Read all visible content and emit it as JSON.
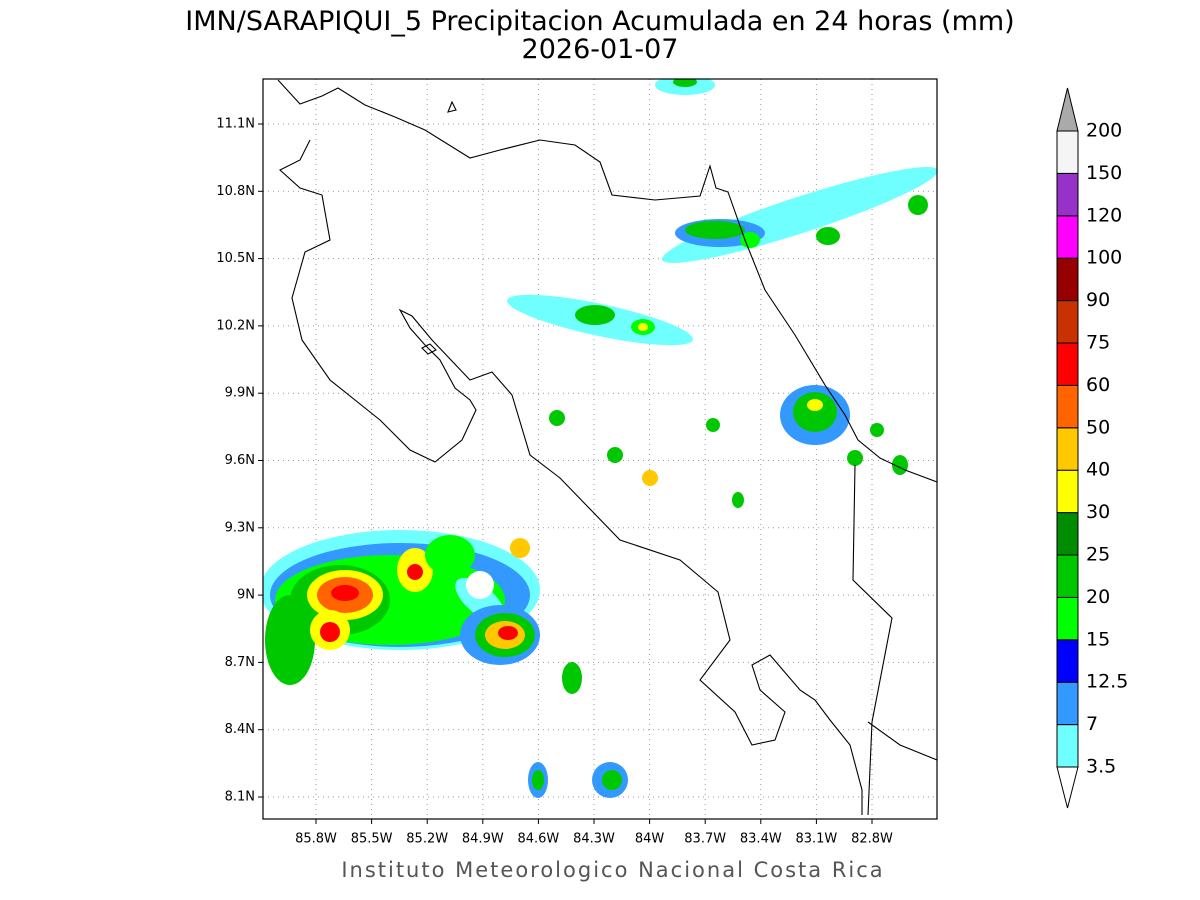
{
  "map": {
    "title": "IMN/SARAPIQUI_5 Precipitacion Acumulada en 24 horas (mm)",
    "subtitle": "2026-01-07",
    "footer": "Instituto Meteorologico Nacional Costa Rica",
    "lon_labels": [
      "85.8W",
      "85.5W",
      "85.2W",
      "84.9W",
      "84.6W",
      "84.3W",
      "84W",
      "83.7W",
      "83.4W",
      "83.1W",
      "82.8W"
    ],
    "lat_labels": [
      "11.1N",
      "10.8N",
      "10.5N",
      "10.2N",
      "9.9N",
      "9.6N",
      "9.3N",
      "9N",
      "8.7N",
      "8.4N",
      "8.1N"
    ],
    "grid": true,
    "colorbar": {
      "levels": [
        3.5,
        7,
        12.5,
        15,
        20,
        25,
        30,
        40,
        50,
        60,
        75,
        90,
        100,
        120,
        150,
        200
      ],
      "colors": [
        "#70ffff",
        "#3399ff",
        "#0000ff",
        "#00ff00",
        "#00c800",
        "#008c00",
        "#ffff00",
        "#ffc800",
        "#ff6400",
        "#ff0000",
        "#c83200",
        "#960000",
        "#ff00ff",
        "#9632c8",
        "#f5f5f5"
      ],
      "under_color": "#ffffff",
      "over_color": "#aaaaaa"
    }
  }
}
